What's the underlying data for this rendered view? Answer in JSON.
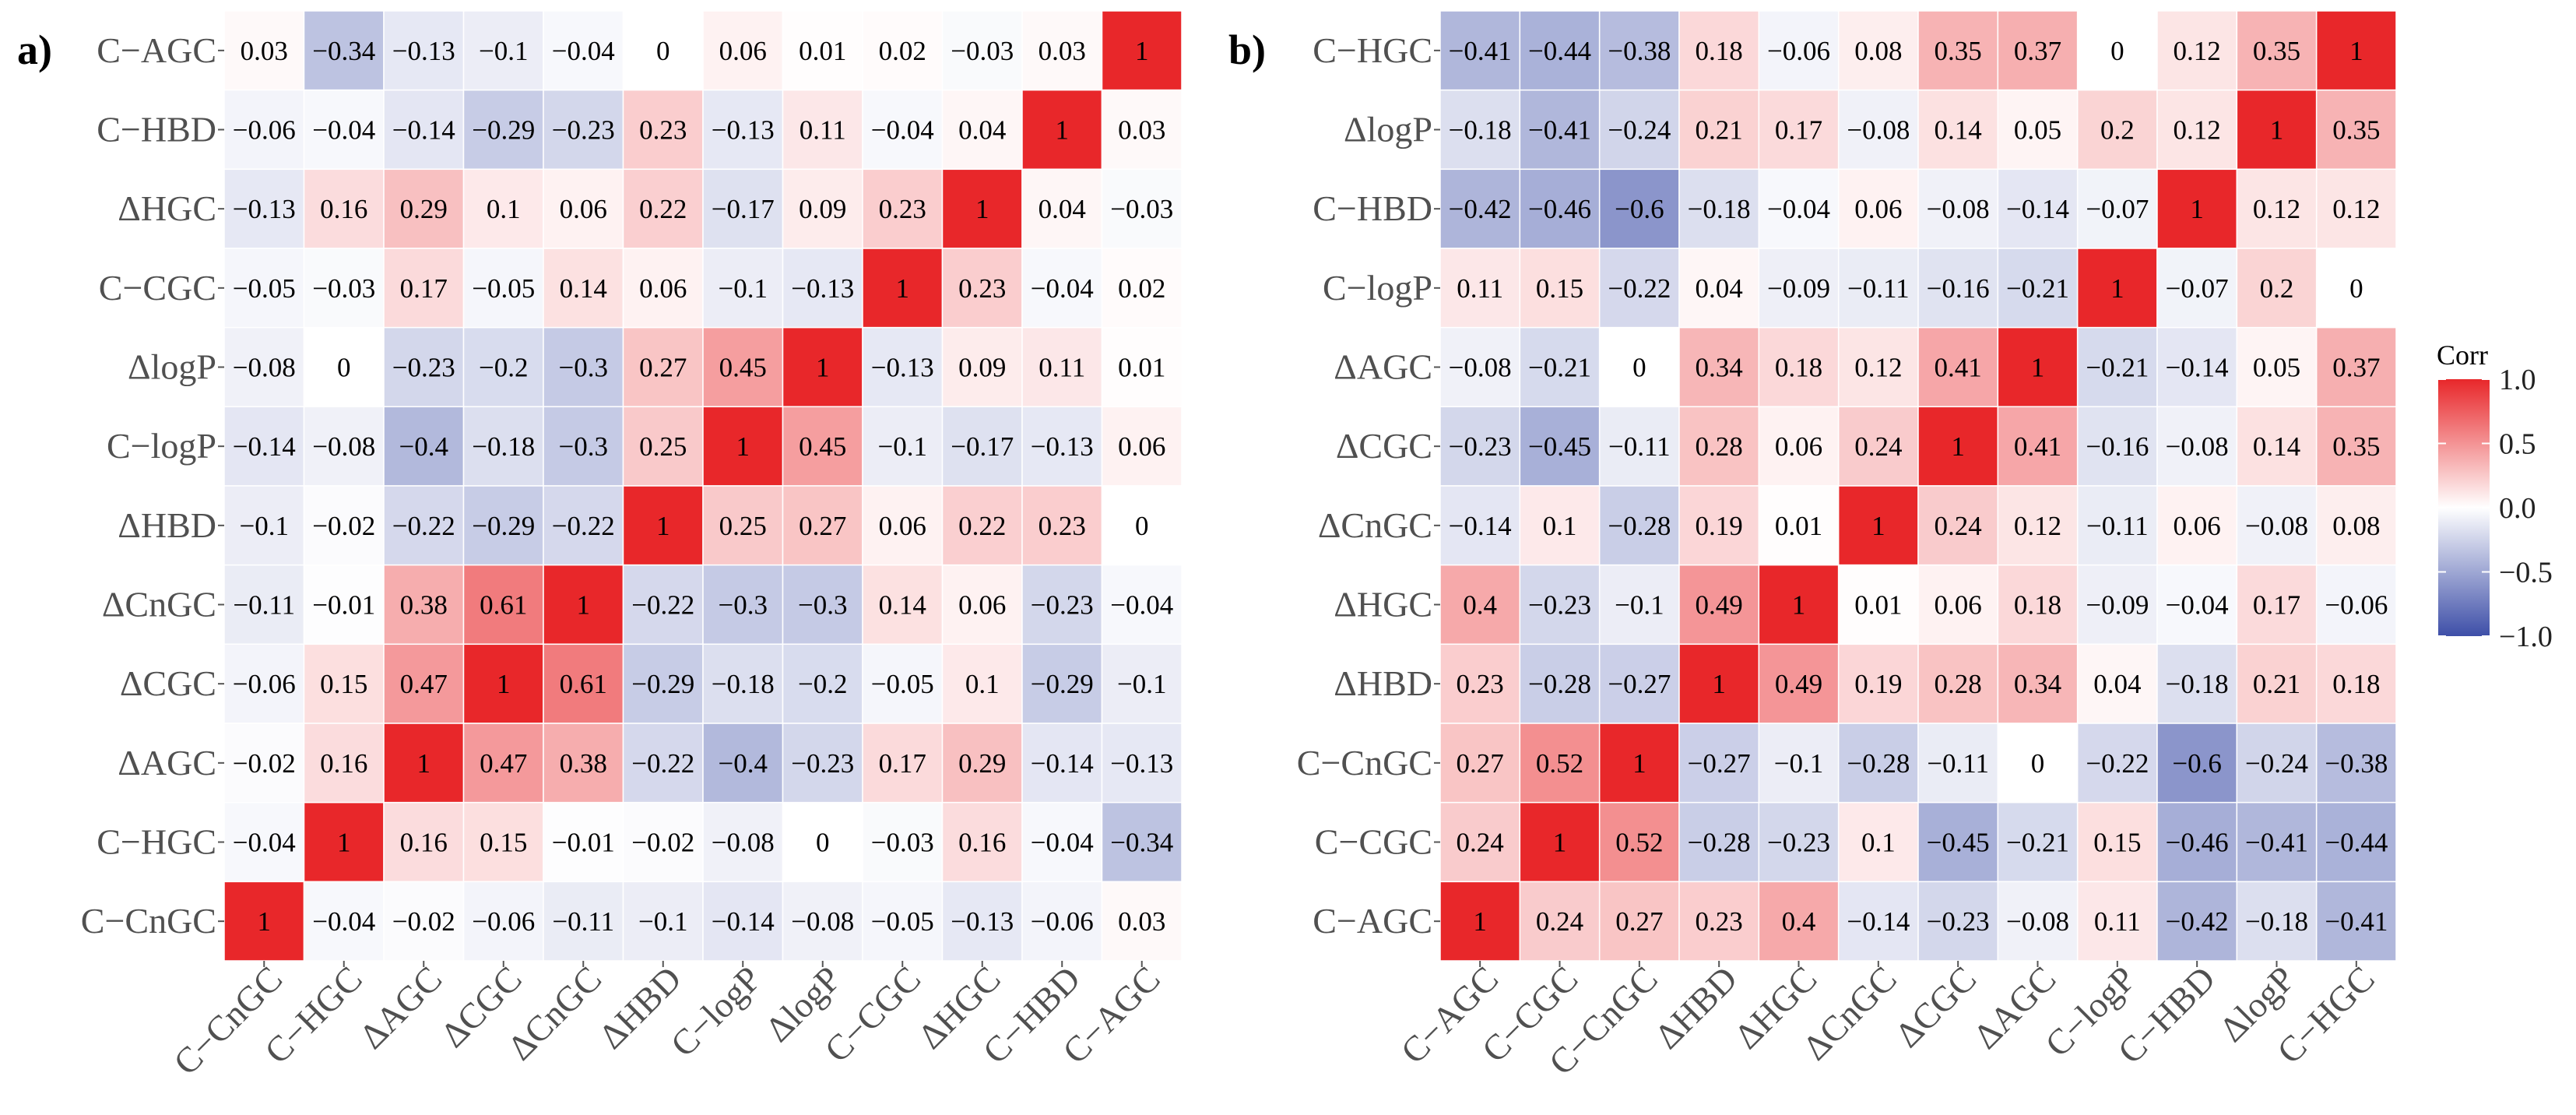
{
  "chart_data": [
    {
      "type": "heatmap",
      "panel_label": "a)",
      "rows": [
        "C−AGC",
        "C−HBD",
        "ΔHGC",
        "C−CGC",
        "ΔlogP",
        "C−logP",
        "ΔHBD",
        "ΔCnGC",
        "ΔCGC",
        "ΔAGC",
        "C−HGC",
        "C−CnGC"
      ],
      "columns": [
        "C−CnGC",
        "C−HGC",
        "ΔAGC",
        "ΔCGC",
        "ΔCnGC",
        "ΔHBD",
        "C−logP",
        "ΔlogP",
        "C−CGC",
        "ΔHGC",
        "C−HBD",
        "C−AGC"
      ],
      "values": [
        [
          0.03,
          -0.34,
          -0.13,
          -0.1,
          -0.04,
          0,
          0.06,
          0.01,
          0.02,
          -0.03,
          0.03,
          1
        ],
        [
          -0.06,
          -0.04,
          -0.14,
          -0.29,
          -0.23,
          0.23,
          -0.13,
          0.11,
          -0.04,
          0.04,
          1,
          0.03
        ],
        [
          -0.13,
          0.16,
          0.29,
          0.1,
          0.06,
          0.22,
          -0.17,
          0.09,
          0.23,
          1,
          0.04,
          -0.03
        ],
        [
          -0.05,
          -0.03,
          0.17,
          -0.05,
          0.14,
          0.06,
          -0.1,
          -0.13,
          1,
          0.23,
          -0.04,
          0.02
        ],
        [
          -0.08,
          0,
          -0.23,
          -0.2,
          -0.3,
          0.27,
          0.45,
          1,
          -0.13,
          0.09,
          0.11,
          0.01
        ],
        [
          -0.14,
          -0.08,
          -0.4,
          -0.18,
          -0.3,
          0.25,
          1,
          0.45,
          -0.1,
          -0.17,
          -0.13,
          0.06
        ],
        [
          -0.1,
          -0.02,
          -0.22,
          -0.29,
          -0.22,
          1,
          0.25,
          0.27,
          0.06,
          0.22,
          0.23,
          0
        ],
        [
          -0.11,
          -0.01,
          0.38,
          0.61,
          1,
          -0.22,
          -0.3,
          -0.3,
          0.14,
          0.06,
          -0.23,
          -0.04
        ],
        [
          -0.06,
          0.15,
          0.47,
          1,
          0.61,
          -0.29,
          -0.18,
          -0.2,
          -0.05,
          0.1,
          -0.29,
          -0.1
        ],
        [
          -0.02,
          0.16,
          1,
          0.47,
          0.38,
          -0.22,
          -0.4,
          -0.23,
          0.17,
          0.29,
          -0.14,
          -0.13
        ],
        [
          -0.04,
          1,
          0.16,
          0.15,
          -0.01,
          -0.02,
          -0.08,
          0,
          -0.03,
          0.16,
          -0.04,
          -0.34
        ],
        [
          1,
          -0.04,
          -0.02,
          -0.06,
          -0.11,
          -0.1,
          -0.14,
          -0.08,
          -0.05,
          -0.13,
          -0.06,
          0.03
        ]
      ]
    },
    {
      "type": "heatmap",
      "panel_label": "b)",
      "rows": [
        "C−HGC",
        "ΔlogP",
        "C−HBD",
        "C−logP",
        "ΔAGC",
        "ΔCGC",
        "ΔCnGC",
        "ΔHGC",
        "ΔHBD",
        "C−CnGC",
        "C−CGC",
        "C−AGC"
      ],
      "columns": [
        "C−AGC",
        "C−CGC",
        "C−CnGC",
        "ΔHBD",
        "ΔHGC",
        "ΔCnGC",
        "ΔCGC",
        "ΔAGC",
        "C−logP",
        "C−HBD",
        "ΔlogP",
        "C−HGC"
      ],
      "values": [
        [
          -0.41,
          -0.44,
          -0.38,
          0.18,
          -0.06,
          0.08,
          0.35,
          0.37,
          0,
          0.12,
          0.35,
          1
        ],
        [
          -0.18,
          -0.41,
          -0.24,
          0.21,
          0.17,
          -0.08,
          0.14,
          0.05,
          0.2,
          0.12,
          1,
          0.35
        ],
        [
          -0.42,
          -0.46,
          -0.6,
          -0.18,
          -0.04,
          0.06,
          -0.08,
          -0.14,
          -0.07,
          1,
          0.12,
          0.12
        ],
        [
          0.11,
          0.15,
          -0.22,
          0.04,
          -0.09,
          -0.11,
          -0.16,
          -0.21,
          1,
          -0.07,
          0.2,
          0
        ],
        [
          -0.08,
          -0.21,
          0,
          0.34,
          0.18,
          0.12,
          0.41,
          1,
          -0.21,
          -0.14,
          0.05,
          0.37
        ],
        [
          -0.23,
          -0.45,
          -0.11,
          0.28,
          0.06,
          0.24,
          1,
          0.41,
          -0.16,
          -0.08,
          0.14,
          0.35
        ],
        [
          -0.14,
          0.1,
          -0.28,
          0.19,
          0.01,
          1,
          0.24,
          0.12,
          -0.11,
          0.06,
          -0.08,
          0.08
        ],
        [
          0.4,
          -0.23,
          -0.1,
          0.49,
          1,
          0.01,
          0.06,
          0.18,
          -0.09,
          -0.04,
          0.17,
          -0.06
        ],
        [
          0.23,
          -0.28,
          -0.27,
          1,
          0.49,
          0.19,
          0.28,
          0.34,
          0.04,
          -0.18,
          0.21,
          0.18
        ],
        [
          0.27,
          0.52,
          1,
          -0.27,
          -0.1,
          -0.28,
          -0.11,
          0,
          -0.22,
          -0.6,
          -0.24,
          -0.38
        ],
        [
          0.24,
          1,
          0.52,
          -0.28,
          -0.23,
          0.1,
          -0.45,
          -0.21,
          0.15,
          -0.46,
          -0.41,
          -0.44
        ],
        [
          1,
          0.24,
          0.27,
          0.23,
          0.4,
          -0.14,
          -0.23,
          -0.08,
          0.11,
          -0.42,
          -0.18,
          -0.41
        ]
      ]
    }
  ],
  "legend": {
    "title": "Corr",
    "range": [
      -1.0,
      1.0
    ],
    "ticks": [
      "1.0",
      "0.5",
      "0.0",
      "−0.5",
      "−1.0"
    ],
    "tick_values": [
      1.0,
      0.5,
      0.0,
      -0.5,
      -1.0
    ]
  },
  "colors": {
    "high": "#e8272a",
    "mid": "#ffffff",
    "low": "#3e4fa8"
  }
}
